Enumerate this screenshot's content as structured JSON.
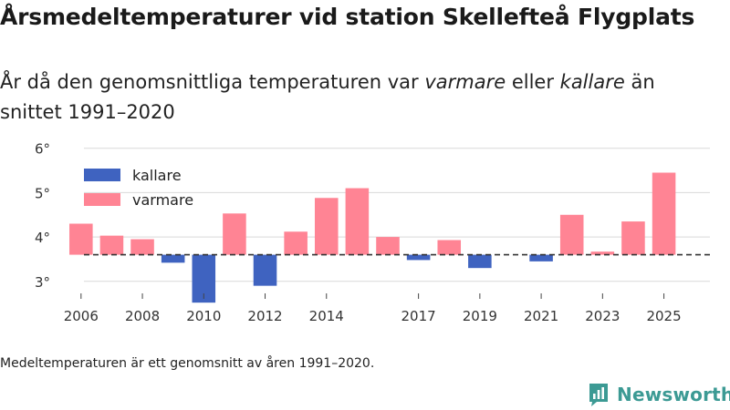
{
  "title": "Årsmedeltemperaturer vid station Skellefteå Flygplats",
  "subtitle": {
    "part1": "År då den genomsnittliga temperaturen var ",
    "warmer_word": "varmare",
    "part2": " eller ",
    "colder_word": "kallare",
    "part3": " än snittet 1991–2020"
  },
  "note": "Medeltemperaturen är ett genomsnitt av åren 1991–2020.",
  "brand": "Newsworthy",
  "colors": {
    "colder": "#3f63c0",
    "warmer": "#ff8494",
    "grid": "#d9d9d9",
    "baseline": "#333333",
    "brand": "#3c9a94"
  },
  "chart_data": {
    "type": "bar",
    "baseline": 3.6,
    "ylim": [
      2.4,
      6.2
    ],
    "yticks": [
      3,
      4,
      5,
      6
    ],
    "ytick_labels": [
      "3°",
      "4°",
      "5°",
      "6°"
    ],
    "xlim": [
      2005.5,
      2026.5
    ],
    "xticks": [
      2006,
      2008,
      2010,
      2012,
      2014,
      2017,
      2019,
      2021,
      2023,
      2025
    ],
    "legend": [
      {
        "key": "colder",
        "label": "kallare"
      },
      {
        "key": "warmer",
        "label": "varmare"
      }
    ],
    "categories": [
      2006,
      2007,
      2008,
      2009,
      2010,
      2011,
      2012,
      2013,
      2014,
      2015,
      2016,
      2017,
      2018,
      2019,
      2020,
      2021,
      2022,
      2023,
      2024,
      2025
    ],
    "values": [
      4.3,
      4.03,
      3.95,
      3.42,
      2.52,
      4.53,
      2.9,
      4.12,
      4.88,
      5.1,
      4.0,
      3.48,
      3.93,
      3.3,
      null,
      3.45,
      4.5,
      3.67,
      4.35,
      5.45
    ]
  }
}
